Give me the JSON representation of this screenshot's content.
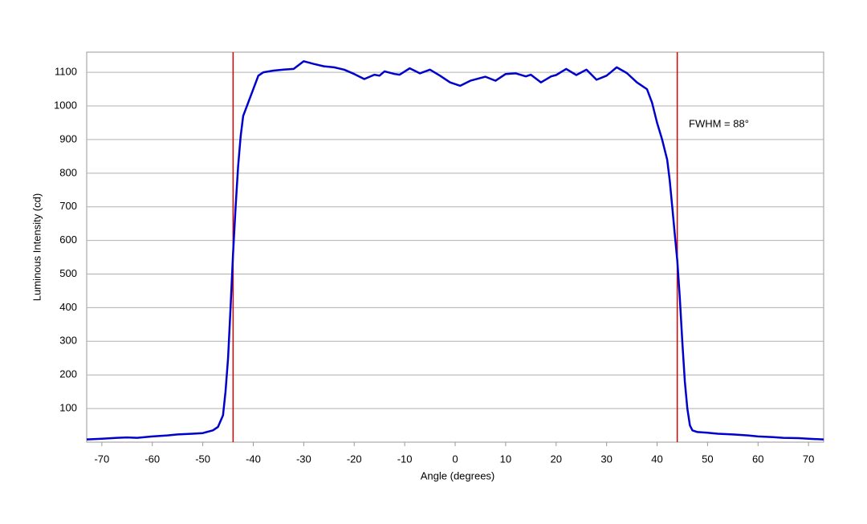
{
  "chart_data": {
    "type": "line",
    "x_label": "Angle (degrees)",
    "y_label": "Luminous Intensity (cd)",
    "annotation": "FWHM = 88°",
    "x": [
      -73,
      -70,
      -67,
      -65,
      -63,
      -60,
      -57,
      -55,
      -52,
      -50,
      -48,
      -47,
      -46,
      -45.5,
      -45,
      -44.5,
      -44,
      -43.5,
      -43,
      -42.5,
      -42,
      -41,
      -40,
      -39,
      -38,
      -36,
      -34,
      -32,
      -30,
      -28,
      -26,
      -24,
      -22,
      -20,
      -18,
      -16,
      -15,
      -14,
      -12,
      -11,
      -9,
      -7,
      -5,
      -3,
      -1,
      1,
      3,
      6,
      8,
      10,
      12,
      14,
      15,
      17,
      19,
      20,
      22,
      24,
      26,
      28,
      30,
      32,
      34,
      36,
      38,
      39,
      40,
      41,
      42,
      42.5,
      43,
      43.5,
      44,
      44.5,
      45,
      45.5,
      46,
      46.5,
      47,
      48,
      50,
      52,
      55,
      58,
      60,
      63,
      65,
      68,
      70,
      73
    ],
    "series": [
      {
        "color": "#0000cc",
        "values": [
          8,
          10,
          13,
          14,
          13,
          17,
          20,
          23,
          25,
          27,
          35,
          45,
          80,
          150,
          250,
          400,
          560,
          700,
          820,
          910,
          970,
          1010,
          1050,
          1090,
          1100,
          1105,
          1108,
          1110,
          1133,
          1125,
          1118,
          1115,
          1108,
          1095,
          1080,
          1093,
          1090,
          1103,
          1095,
          1093,
          1112,
          1097,
          1108,
          1090,
          1070,
          1060,
          1075,
          1087,
          1075,
          1095,
          1097,
          1088,
          1093,
          1070,
          1088,
          1092,
          1110,
          1092,
          1108,
          1078,
          1090,
          1115,
          1098,
          1070,
          1050,
          1010,
          950,
          900,
          840,
          780,
          700,
          620,
          540,
          430,
          300,
          180,
          100,
          50,
          35,
          30,
          28,
          25,
          23,
          20,
          17,
          15,
          13,
          12,
          10,
          8
        ]
      }
    ],
    "vlines": [
      -44,
      44
    ],
    "vline_color": "#e00000",
    "xlim": [
      -73,
      73
    ],
    "ylim": [
      0,
      1160
    ],
    "xticks": [
      -70,
      -60,
      -50,
      -40,
      -30,
      -20,
      -10,
      0,
      10,
      20,
      30,
      40,
      50,
      60,
      70
    ],
    "yticks": [
      100,
      200,
      300,
      400,
      500,
      600,
      700,
      800,
      900,
      1000,
      1100
    ],
    "grid": true
  }
}
